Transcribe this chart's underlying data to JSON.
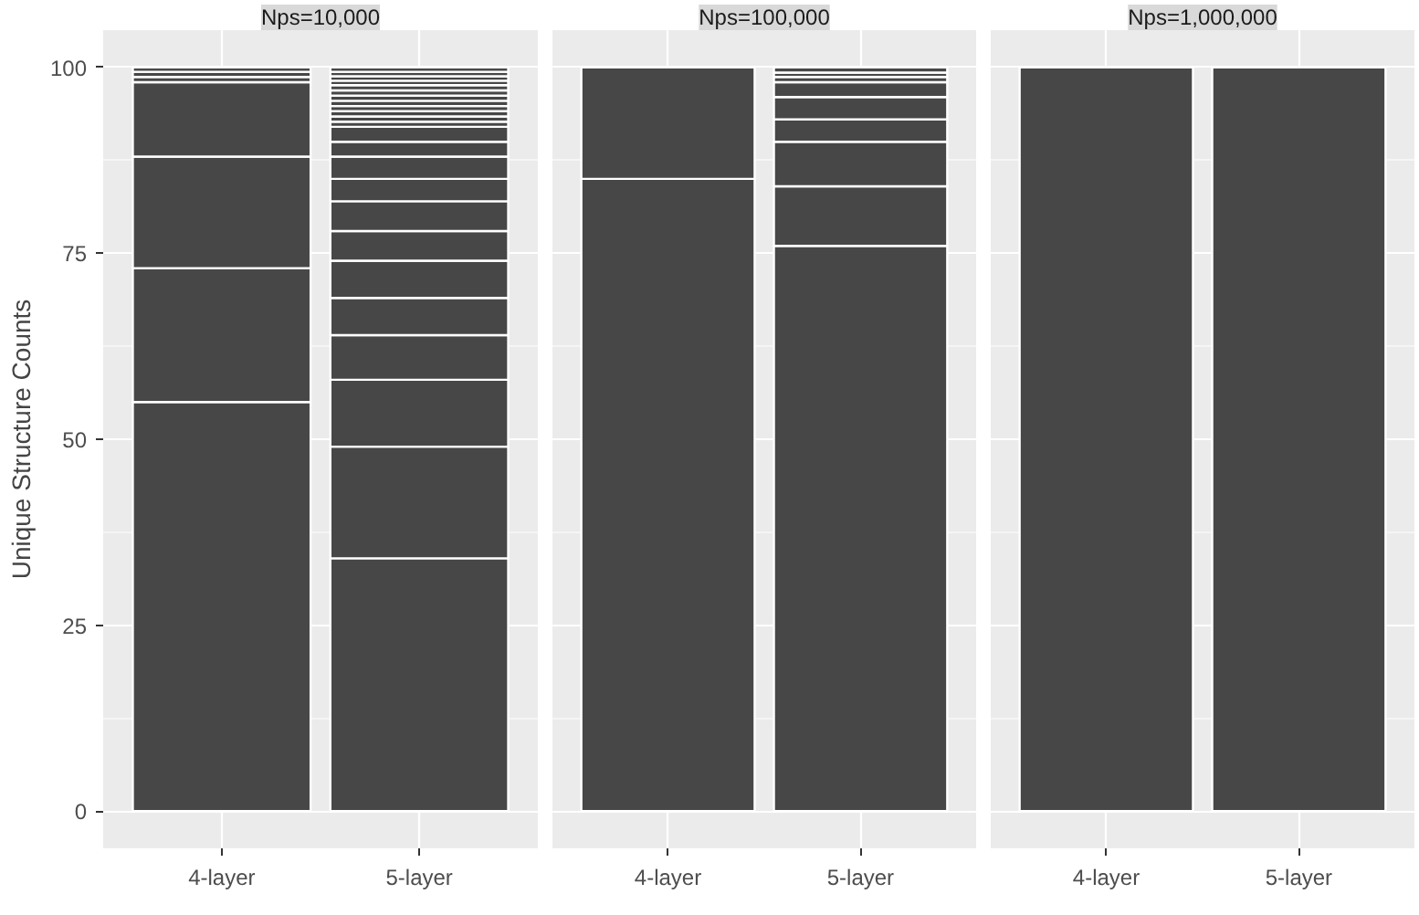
{
  "chart_data": [
    {
      "type": "bar",
      "stacked": true,
      "title": "Nps=10,000",
      "ylabel": "Unique Structure Counts",
      "categories": [
        "4-layer",
        "5-layer"
      ],
      "ylim": [
        -5,
        105
      ],
      "yticks": [
        0,
        25,
        50,
        75,
        100
      ],
      "grid": true,
      "series": [
        {
          "color": "#474747",
          "values": [
            55,
            34
          ]
        },
        {
          "color": "#474747",
          "values": [
            18,
            15
          ]
        },
        {
          "color": "#474747",
          "values": [
            15,
            9
          ]
        },
        {
          "color": "#474747",
          "values": [
            10,
            6
          ]
        },
        {
          "color": "#474747",
          "values": [
            0.7,
            5
          ]
        },
        {
          "color": "#474747",
          "values": [
            0.7,
            5
          ]
        },
        {
          "color": "#474747",
          "values": [
            0.6,
            4
          ]
        },
        {
          "color": "#474747",
          "values": [
            null,
            4
          ]
        },
        {
          "color": "#474747",
          "values": [
            null,
            3
          ]
        },
        {
          "color": "#474747",
          "values": [
            null,
            3
          ]
        },
        {
          "color": "#474747",
          "values": [
            null,
            2
          ]
        },
        {
          "color": "#474747",
          "values": [
            null,
            2
          ]
        },
        {
          "color": "#474747",
          "values": [
            null,
            0.7
          ]
        },
        {
          "color": "#474747",
          "values": [
            null,
            0.7
          ]
        },
        {
          "color": "#474747",
          "values": [
            null,
            0.7
          ]
        },
        {
          "color": "#474747",
          "values": [
            null,
            0.7
          ]
        },
        {
          "color": "#474747",
          "values": [
            null,
            0.7
          ]
        },
        {
          "color": "#474747",
          "values": [
            null,
            0.7
          ]
        },
        {
          "color": "#474747",
          "values": [
            null,
            0.7
          ]
        },
        {
          "color": "#474747",
          "values": [
            null,
            0.7
          ]
        },
        {
          "color": "#474747",
          "values": [
            null,
            0.6
          ]
        },
        {
          "color": "#474747",
          "values": [
            null,
            0.6
          ]
        },
        {
          "color": "#474747",
          "values": [
            null,
            0.6
          ]
        },
        {
          "color": "#474747",
          "values": [
            null,
            0.6
          ]
        }
      ]
    },
    {
      "type": "bar",
      "stacked": true,
      "title": "Nps=100,000",
      "categories": [
        "4-layer",
        "5-layer"
      ],
      "ylim": [
        -5,
        105
      ],
      "yticks": [
        0,
        25,
        50,
        75,
        100
      ],
      "grid": true,
      "tick_labels": "x",
      "series": [
        {
          "color": "#474747",
          "values": [
            85,
            76
          ]
        },
        {
          "color": "#474747",
          "values": [
            15,
            8
          ]
        },
        {
          "color": "#474747",
          "values": [
            null,
            6
          ]
        },
        {
          "color": "#474747",
          "values": [
            null,
            3
          ]
        },
        {
          "color": "#474747",
          "values": [
            null,
            3
          ]
        },
        {
          "color": "#474747",
          "values": [
            null,
            2
          ]
        },
        {
          "color": "#474747",
          "values": [
            null,
            0.7
          ]
        },
        {
          "color": "#474747",
          "values": [
            null,
            0.6
          ]
        },
        {
          "color": "#474747",
          "values": [
            null,
            0.7
          ]
        }
      ]
    },
    {
      "type": "bar",
      "stacked": true,
      "title": "Nps=1,000,000",
      "categories": [
        "4-layer",
        "5-layer"
      ],
      "ylim": [
        -5,
        105
      ],
      "yticks": [
        0,
        25,
        50,
        75,
        100
      ],
      "grid": true,
      "tick_labels": "x",
      "series": [
        {
          "color": "#474747",
          "values": [
            100,
            100
          ]
        }
      ]
    }
  ]
}
